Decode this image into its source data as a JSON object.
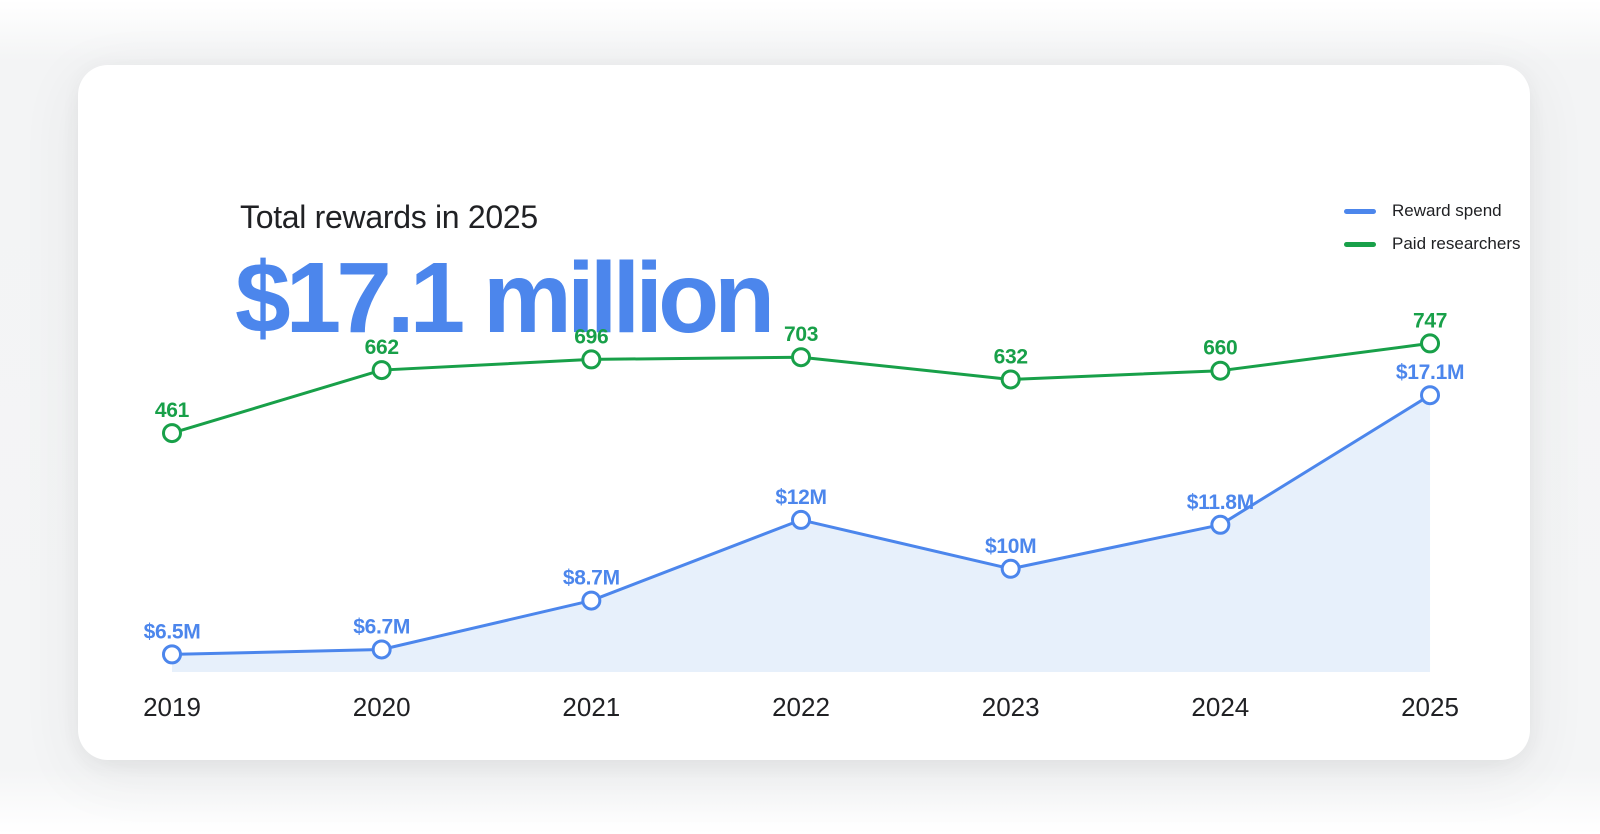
{
  "header": {
    "title": "Total rewards in 2025",
    "headline": "$17.1 million"
  },
  "colors": {
    "headline": "#4C86EC",
    "axis_text": "#202124"
  },
  "chart_data": {
    "type": "line",
    "title": "Total rewards in 2025",
    "xlabel": "",
    "ylabel": "",
    "grid": false,
    "legend_position": "top-right",
    "categories": [
      "2019",
      "2020",
      "2021",
      "2022",
      "2023",
      "2024",
      "2025"
    ],
    "series": [
      {
        "name": "Reward spend",
        "color": "#4C86EC",
        "area_fill": "#E7F0FB",
        "marker": "open-circle",
        "values": [
          6.5,
          6.7,
          8.7,
          12,
          10,
          11.8,
          17.1
        ],
        "labels": [
          "$6.5M",
          "$6.7M",
          "$8.7M",
          "$12M",
          "$10M",
          "$11.8M",
          "$17.1M"
        ]
      },
      {
        "name": "Paid researchers",
        "color": "#18A049",
        "marker": "open-circle",
        "values": [
          461,
          662,
          696,
          703,
          632,
          660,
          747
        ],
        "labels": [
          "461",
          "662",
          "696",
          "703",
          "632",
          "660",
          "747"
        ]
      }
    ]
  }
}
